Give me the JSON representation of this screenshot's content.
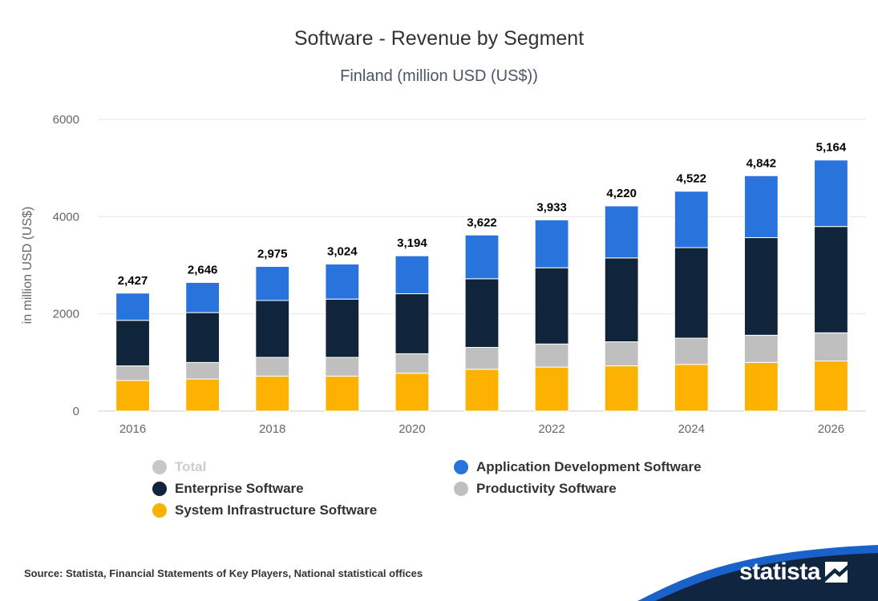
{
  "chart_data": {
    "type": "bar",
    "stacked": true,
    "title": "Software - Revenue by Segment",
    "subtitle": "Finland (million USD (US$))",
    "xlabel": "",
    "ylabel": "in million USD (US$)",
    "ylim": [
      0,
      6000
    ],
    "yticks": [
      "0",
      "2000",
      "4000",
      "6000"
    ],
    "categories": [
      "2016",
      "2017",
      "2018",
      "2019",
      "2020",
      "2021",
      "2022",
      "2023",
      "2024",
      "2025",
      "2026"
    ],
    "xtick_labels": [
      "2016",
      "",
      "2018",
      "",
      "2020",
      "",
      "2022",
      "",
      "2024",
      "",
      "2026"
    ],
    "totals": [
      2427,
      2646,
      2975,
      3024,
      3194,
      3622,
      3933,
      4220,
      4522,
      4842,
      5164
    ],
    "total_labels": [
      "2,427",
      "2,646",
      "2,975",
      "3,024",
      "3,194",
      "3,622",
      "3,933",
      "4,220",
      "4,522",
      "4,842",
      "5,164"
    ],
    "series": [
      {
        "name": "System Infrastructure Software",
        "color": "#fdb100",
        "values": [
          630,
          660,
          720,
          720,
          780,
          860,
          905,
          930,
          960,
          1000,
          1030
        ]
      },
      {
        "name": "Productivity Software",
        "color": "#bfbfbf",
        "values": [
          300,
          340,
          385,
          385,
          400,
          450,
          475,
          495,
          540,
          560,
          580
        ]
      },
      {
        "name": "Enterprise Software",
        "color": "#10243b",
        "values": [
          937,
          1026,
          1170,
          1199,
          1234,
          1412,
          1568,
          1725,
          1862,
          2008,
          2187
        ]
      },
      {
        "name": "Application Development Software",
        "color": "#2874dc",
        "values": [
          560,
          620,
          700,
          720,
          780,
          900,
          985,
          1070,
          1160,
          1274,
          1367
        ]
      }
    ],
    "legend": [
      {
        "name": "Total",
        "color": "#c8c8c8",
        "disabled": true
      },
      {
        "name": "Application Development Software",
        "color": "#2874dc"
      },
      {
        "name": "Enterprise Software",
        "color": "#10243b"
      },
      {
        "name": "Productivity Software",
        "color": "#bfbfbf"
      },
      {
        "name": "System Infrastructure Software",
        "color": "#fdb100"
      }
    ],
    "grid": true
  },
  "footer": {
    "source": "Source: Statista, Financial Statements of Key Players, National statistical offices",
    "brand": "statista"
  },
  "colors": {
    "brand_blue": "#1a62c9",
    "brand_navy": "#0f2540"
  }
}
